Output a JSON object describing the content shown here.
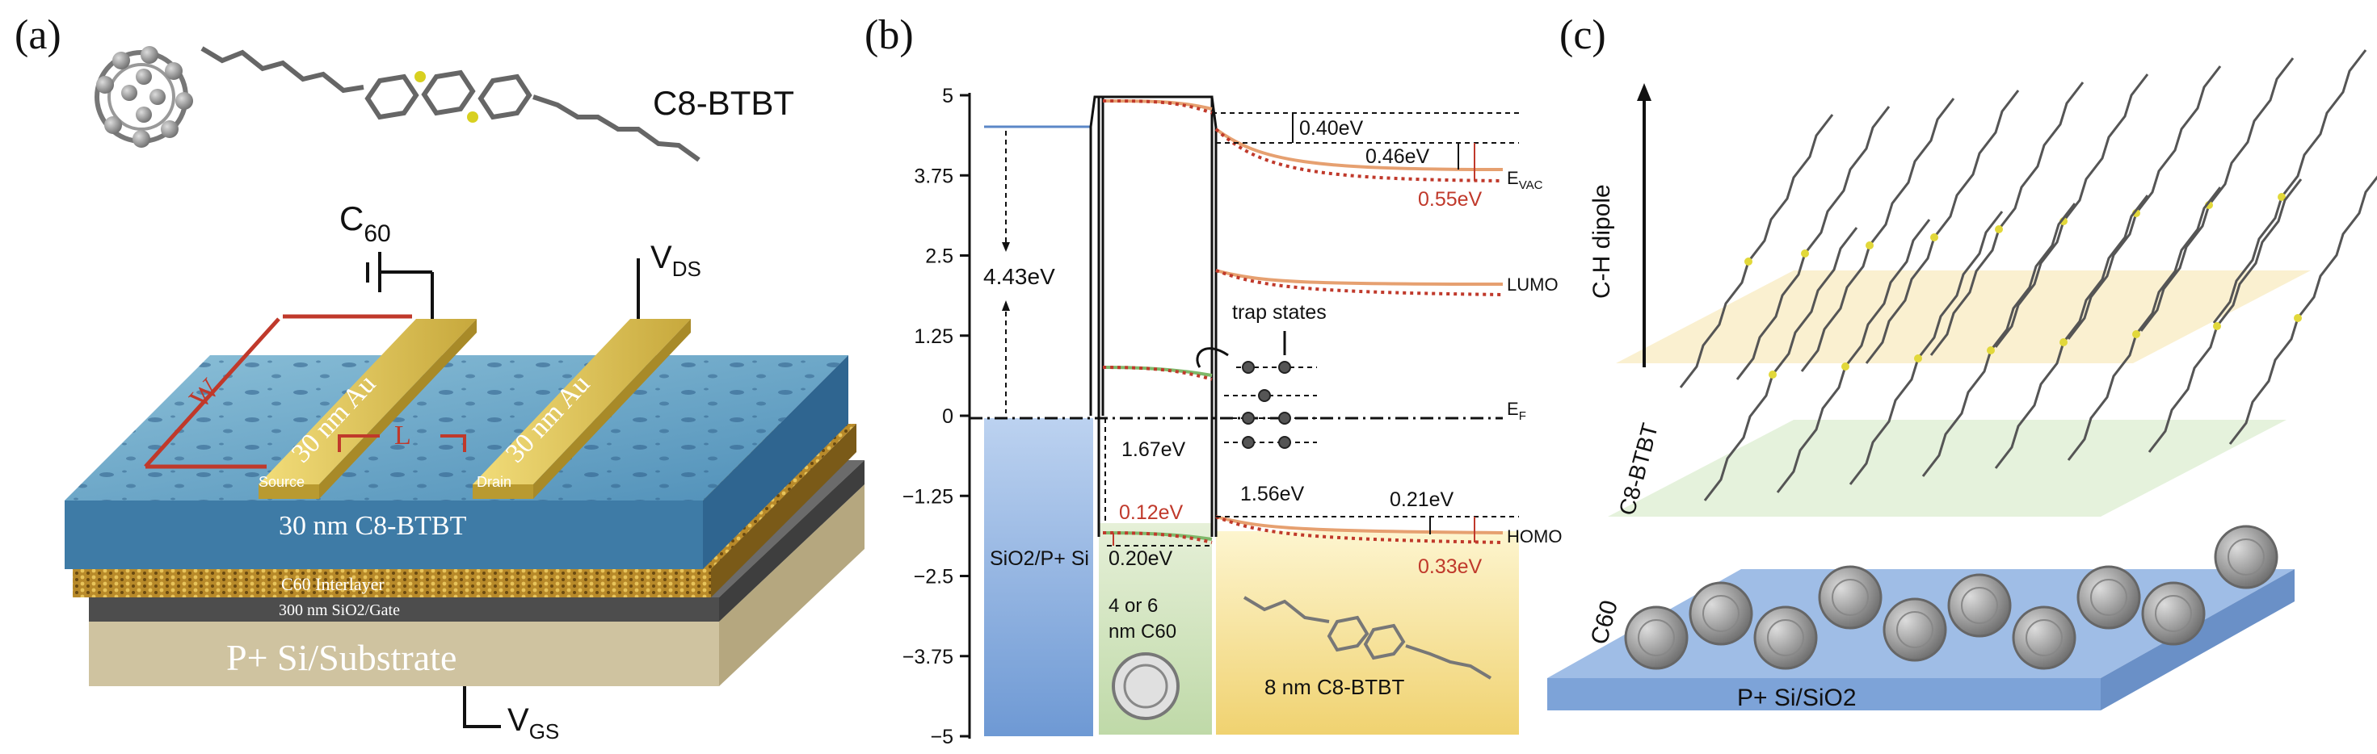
{
  "panels": {
    "a": {
      "label": "(a)",
      "molecule_name": "C8-BTBT",
      "c60_label": "C",
      "c60_sub": "60",
      "vds_label": "V",
      "vds_sub": "DS",
      "vgs_label": "V",
      "vgs_sub": "GS",
      "electrode_left": "30 nm Au",
      "electrode_right": "30 nm Au",
      "source_label": "Source",
      "drain_label": "Drain",
      "w_label": "W",
      "l_label": "L",
      "film_label": "30 nm C8-BTBT",
      "interlayer_label": "C60 Interlayer",
      "oxide_label": "300 nm SiO2/Gate",
      "substrate_label": "P+ Si/Substrate"
    },
    "b": {
      "label": "(b)",
      "yticks": [
        "5",
        "3.75",
        "2.5",
        "1.25",
        "0",
        "−1.25",
        "−2.5",
        "−3.75",
        "−5"
      ],
      "ylim": [
        -5,
        5
      ],
      "annotations": {
        "e443": "4.43eV",
        "e040": "0.40eV",
        "e046": "0.46eV",
        "e055": "0.55eV",
        "e167": "1.67eV",
        "e012": "0.12eV",
        "e020": "0.20eV",
        "e156": "1.56eV",
        "e021": "0.21eV",
        "e033": "0.33eV"
      },
      "levels": {
        "evac": "E",
        "evac_sub": "VAC",
        "lumo": "LUMO",
        "ef": "E",
        "ef_sub": "F",
        "homo": "HOMO",
        "trap": "trap states"
      },
      "regions": {
        "sio2": "SiO2/P+ Si",
        "c60_line1": "4 or 6",
        "c60_line2": "nm C60",
        "btbt": "8 nm C8-BTBT"
      }
    },
    "c": {
      "label": "(c)",
      "dipole": "C-H dipole",
      "btbt": "C8-BTBT",
      "c60": "C60",
      "substrate": "P+ Si/SiO2"
    }
  },
  "colors": {
    "gold": "#d9c25a",
    "blue_film": "#6fa6c8",
    "red": "#c0392b",
    "orange_line": "#e6a070",
    "sio2_fill": "#8fb3e0",
    "c60_fill": "#cfe3c0",
    "btbt_fill": "#f5e39a"
  }
}
